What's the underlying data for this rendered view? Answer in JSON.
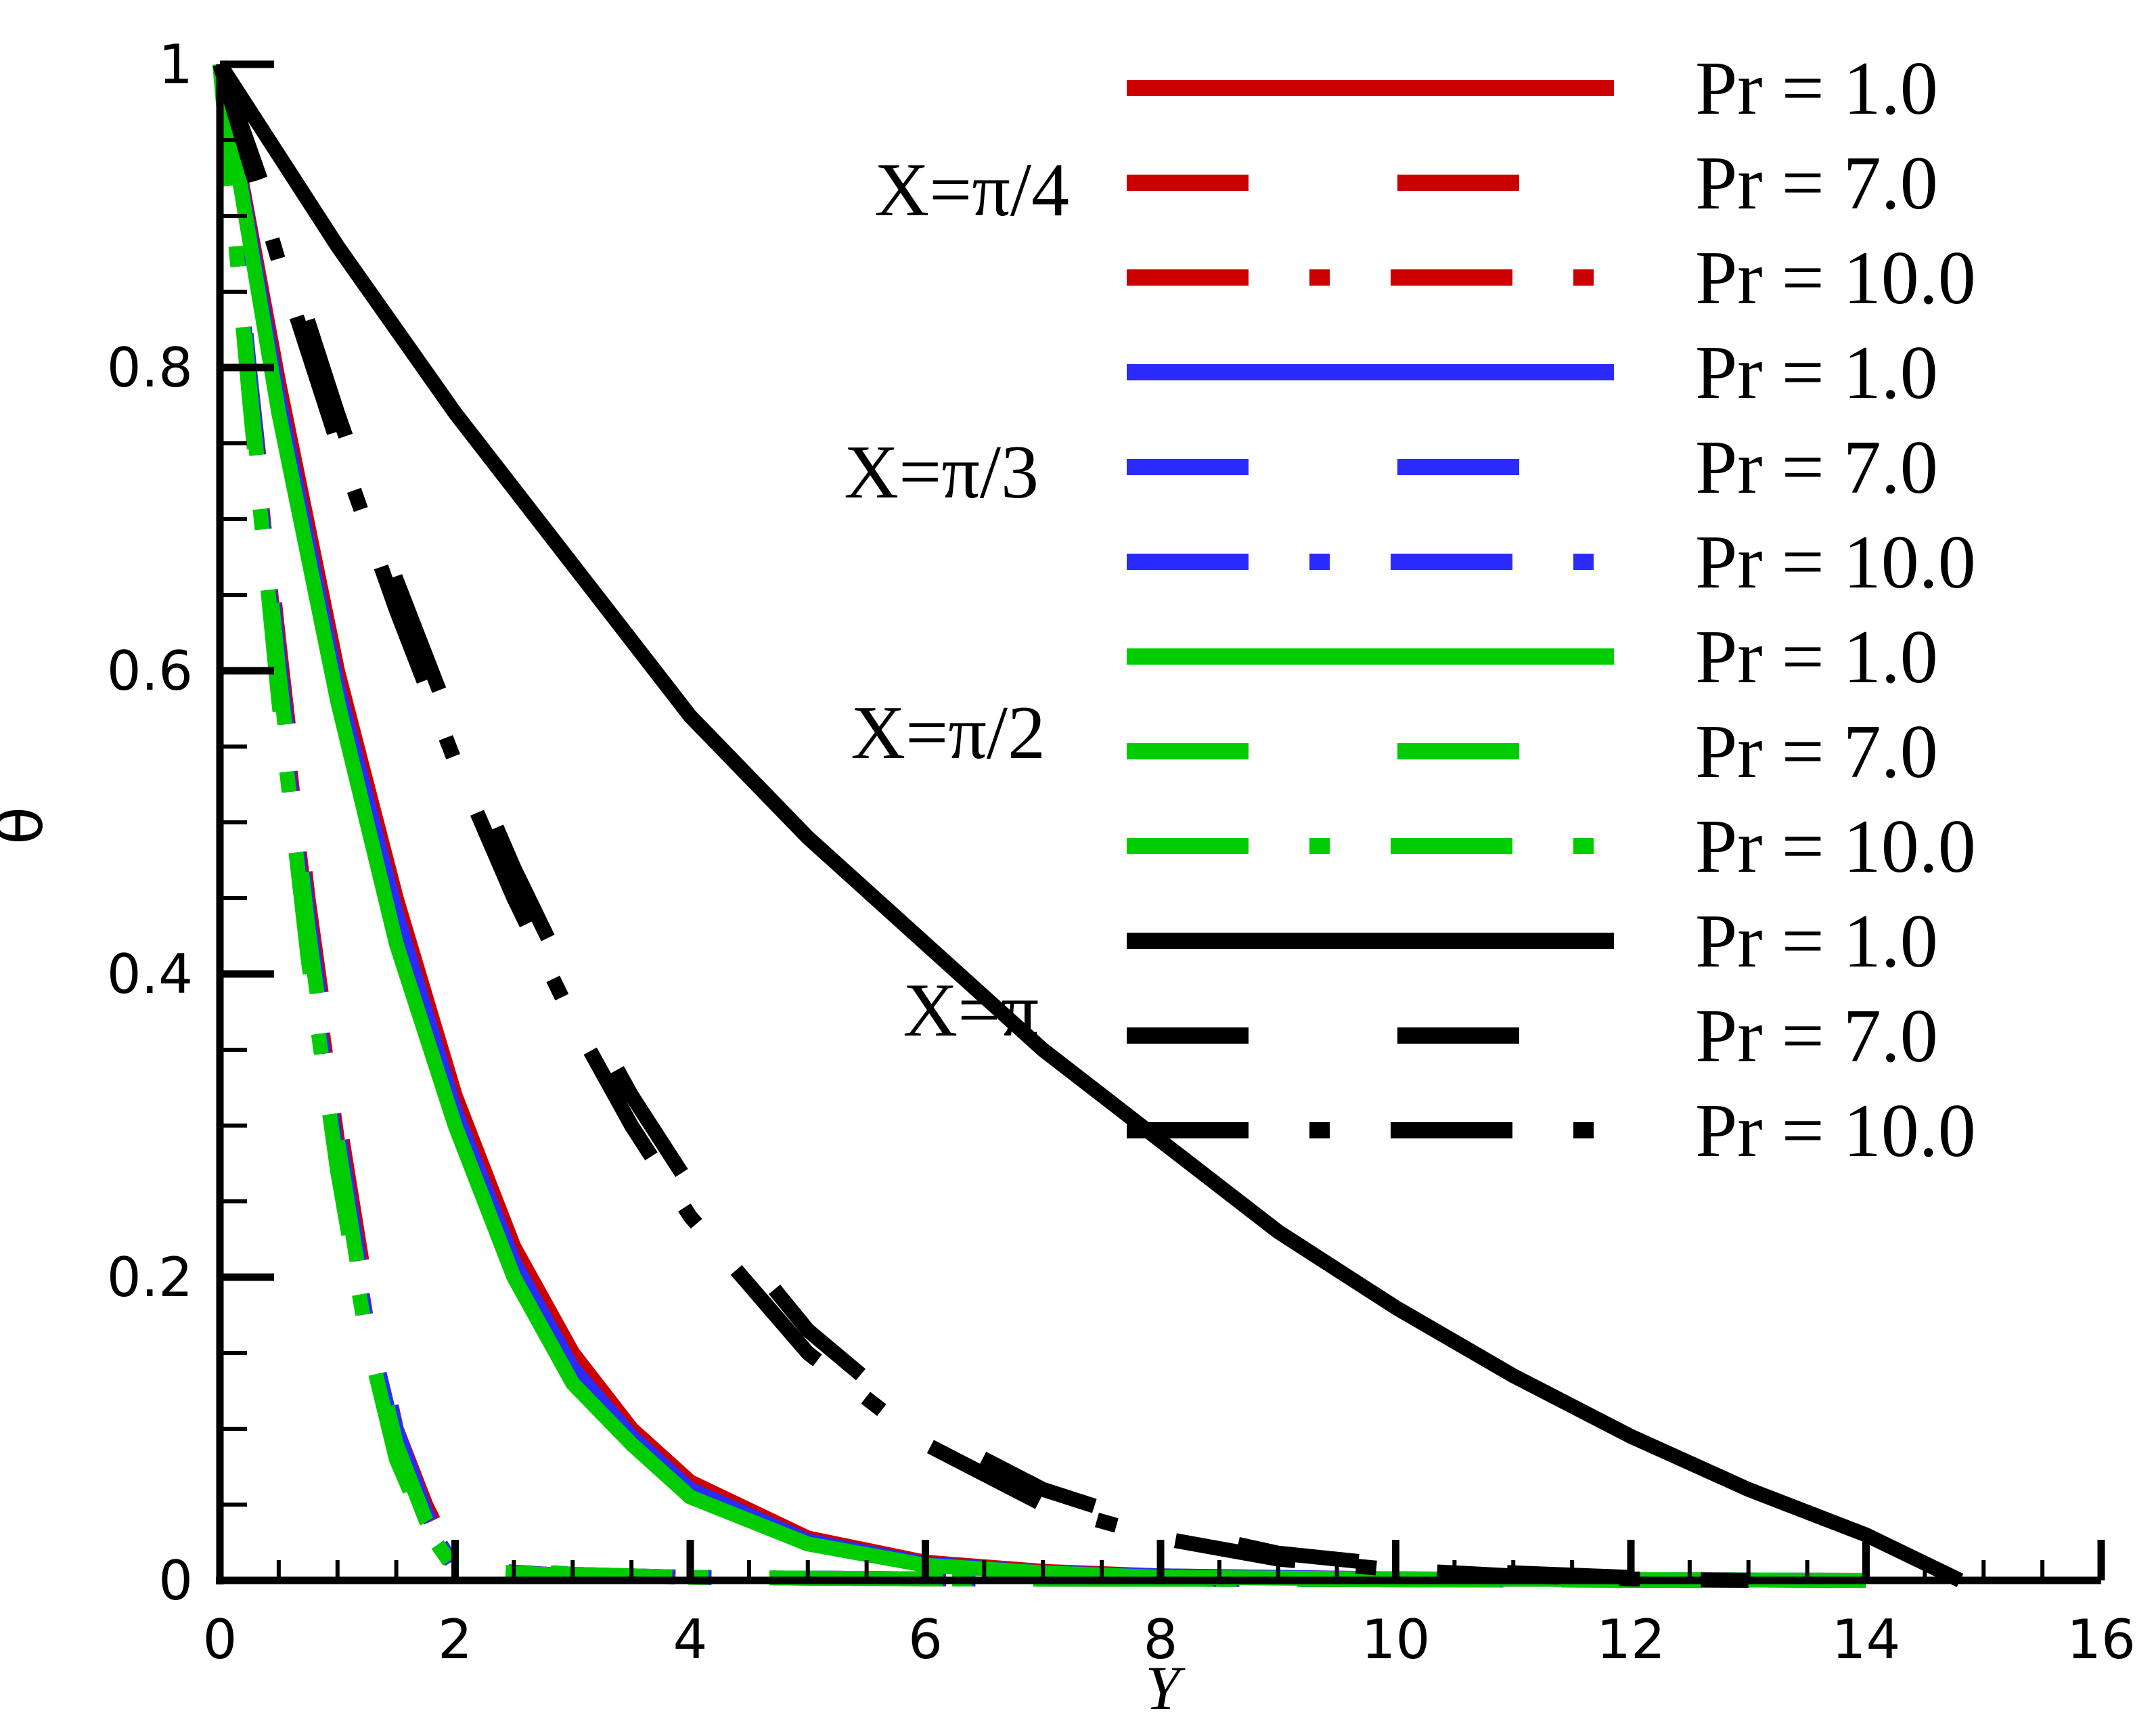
{
  "chart_data": {
    "type": "line",
    "xlabel": "Y",
    "ylabel": "θ",
    "xlim": [
      0,
      16
    ],
    "ylim": [
      0,
      1
    ],
    "x_ticks": [
      "0",
      "2",
      "4",
      "6",
      "8",
      "10",
      "12",
      "14",
      "16"
    ],
    "y_ticks": [
      "0",
      "0.2",
      "0.4",
      "0.6",
      "0.8",
      "1"
    ],
    "grid": false,
    "legend_position": "top-right",
    "group_labels": [
      {
        "text": "X=π/4",
        "color": "#cc0000"
      },
      {
        "text": "X=π/3",
        "color": "#2b2bff"
      },
      {
        "text": "X=π/2",
        "color": "#00cc00"
      },
      {
        "text": "X=π",
        "color": "#000000"
      }
    ],
    "series": [
      {
        "name": "Pr = 1.0",
        "group": "X=π/4",
        "color": "#cc0000",
        "style": "solid",
        "x": [
          0,
          0.5,
          1,
          1.5,
          2,
          2.5,
          3,
          3.5,
          4,
          5,
          6,
          7,
          8,
          10,
          14
        ],
        "y": [
          1,
          0.79,
          0.6,
          0.45,
          0.32,
          0.22,
          0.15,
          0.1,
          0.065,
          0.028,
          0.012,
          0.006,
          0.003,
          0.001,
          0
        ]
      },
      {
        "name": "Pr = 7.0",
        "group": "X=π/4",
        "color": "#cc0000",
        "style": "dash",
        "x": [
          0,
          0.25,
          0.5,
          0.75,
          1,
          1.25,
          1.5,
          1.75,
          2,
          3,
          4,
          6,
          13
        ],
        "y": [
          1,
          0.8,
          0.62,
          0.45,
          0.31,
          0.19,
          0.1,
          0.05,
          0.01,
          0.004,
          0.002,
          0.001,
          0
        ]
      },
      {
        "name": "Pr = 10.0",
        "group": "X=π/4",
        "color": "#cc0000",
        "style": "dashdot",
        "x": [
          0,
          0.25,
          0.5,
          0.75,
          1,
          1.25,
          1.5,
          1.75,
          2,
          3,
          4,
          6,
          13
        ],
        "y": [
          1,
          0.79,
          0.6,
          0.43,
          0.29,
          0.17,
          0.09,
          0.04,
          0.008,
          0.003,
          0.002,
          0.001,
          0
        ]
      },
      {
        "name": "Pr = 1.0",
        "group": "X=π/3",
        "color": "#2b2bff",
        "style": "solid",
        "x": [
          0,
          0.5,
          1,
          1.5,
          2,
          2.5,
          3,
          3.5,
          4,
          5,
          6,
          7,
          8,
          10,
          14
        ],
        "y": [
          1,
          0.78,
          0.59,
          0.44,
          0.31,
          0.21,
          0.14,
          0.095,
          0.06,
          0.026,
          0.011,
          0.005,
          0.003,
          0.001,
          0
        ]
      },
      {
        "name": "Pr = 7.0",
        "group": "X=π/3",
        "color": "#2b2bff",
        "style": "dash",
        "x": [
          0,
          0.25,
          0.5,
          0.75,
          1,
          1.25,
          1.5,
          1.75,
          2,
          3,
          4,
          6,
          13
        ],
        "y": [
          1,
          0.8,
          0.61,
          0.44,
          0.3,
          0.18,
          0.1,
          0.045,
          0.01,
          0.004,
          0.002,
          0.001,
          0
        ]
      },
      {
        "name": "Pr = 10.0",
        "group": "X=π/3",
        "color": "#2b2bff",
        "style": "dashdot",
        "x": [
          0,
          0.25,
          0.5,
          0.75,
          1,
          1.25,
          1.5,
          1.75,
          2,
          3,
          4,
          6,
          13
        ],
        "y": [
          1,
          0.79,
          0.59,
          0.42,
          0.28,
          0.17,
          0.09,
          0.04,
          0.008,
          0.003,
          0.002,
          0.001,
          0
        ]
      },
      {
        "name": "Pr = 1.0",
        "group": "X=π/2",
        "color": "#00cc00",
        "style": "solid",
        "x": [
          0,
          0.5,
          1,
          1.5,
          2,
          2.5,
          3,
          3.5,
          4,
          5,
          6,
          7,
          8,
          10,
          14
        ],
        "y": [
          1,
          0.77,
          0.58,
          0.42,
          0.3,
          0.2,
          0.13,
          0.09,
          0.055,
          0.024,
          0.01,
          0.005,
          0.002,
          0.001,
          0
        ]
      },
      {
        "name": "Pr = 7.0",
        "group": "X=π/2",
        "color": "#00cc00",
        "style": "dash",
        "x": [
          0,
          0.25,
          0.5,
          0.75,
          1,
          1.25,
          1.5,
          1.75,
          2,
          3,
          4,
          6,
          13
        ],
        "y": [
          1,
          0.79,
          0.6,
          0.43,
          0.29,
          0.17,
          0.09,
          0.04,
          0.009,
          0.004,
          0.002,
          0.001,
          0
        ]
      },
      {
        "name": "Pr = 10.0",
        "group": "X=π/2",
        "color": "#00cc00",
        "style": "dashdot",
        "x": [
          0,
          0.25,
          0.5,
          0.75,
          1,
          1.25,
          1.5,
          1.75,
          2,
          3,
          4,
          6,
          13
        ],
        "y": [
          1,
          0.78,
          0.58,
          0.41,
          0.27,
          0.16,
          0.08,
          0.035,
          0.007,
          0.003,
          0.002,
          0.001,
          0
        ]
      },
      {
        "name": "Pr = 1.0",
        "group": "X=π",
        "color": "#000000",
        "style": "solid",
        "x": [
          0,
          1,
          2,
          3,
          4,
          5,
          6,
          7,
          8,
          9,
          10,
          11,
          12,
          13,
          14,
          14.8
        ],
        "y": [
          1,
          0.88,
          0.77,
          0.67,
          0.57,
          0.49,
          0.42,
          0.35,
          0.29,
          0.23,
          0.18,
          0.135,
          0.095,
          0.06,
          0.03,
          0
        ]
      },
      {
        "name": "Pr = 7.0",
        "group": "X=π",
        "color": "#000000",
        "style": "dash",
        "x": [
          0,
          0.5,
          1,
          1.5,
          2,
          2.5,
          3,
          3.5,
          4,
          5,
          6,
          7,
          8,
          9,
          10,
          11,
          12,
          13
        ],
        "y": [
          1,
          0.89,
          0.77,
          0.66,
          0.56,
          0.47,
          0.39,
          0.32,
          0.26,
          0.165,
          0.1,
          0.06,
          0.035,
          0.018,
          0.01,
          0.005,
          0.002,
          0
        ]
      },
      {
        "name": "Pr = 10.0",
        "group": "X=π",
        "color": "#000000",
        "style": "dashdot",
        "x": [
          0,
          0.5,
          1,
          1.5,
          2,
          2.5,
          3,
          3.5,
          4,
          5,
          6,
          7,
          8,
          9,
          10,
          11,
          12,
          13
        ],
        "y": [
          1,
          0.87,
          0.75,
          0.64,
          0.54,
          0.45,
          0.37,
          0.3,
          0.24,
          0.15,
          0.09,
          0.05,
          0.028,
          0.014,
          0.007,
          0.003,
          0.001,
          0
        ]
      }
    ]
  }
}
